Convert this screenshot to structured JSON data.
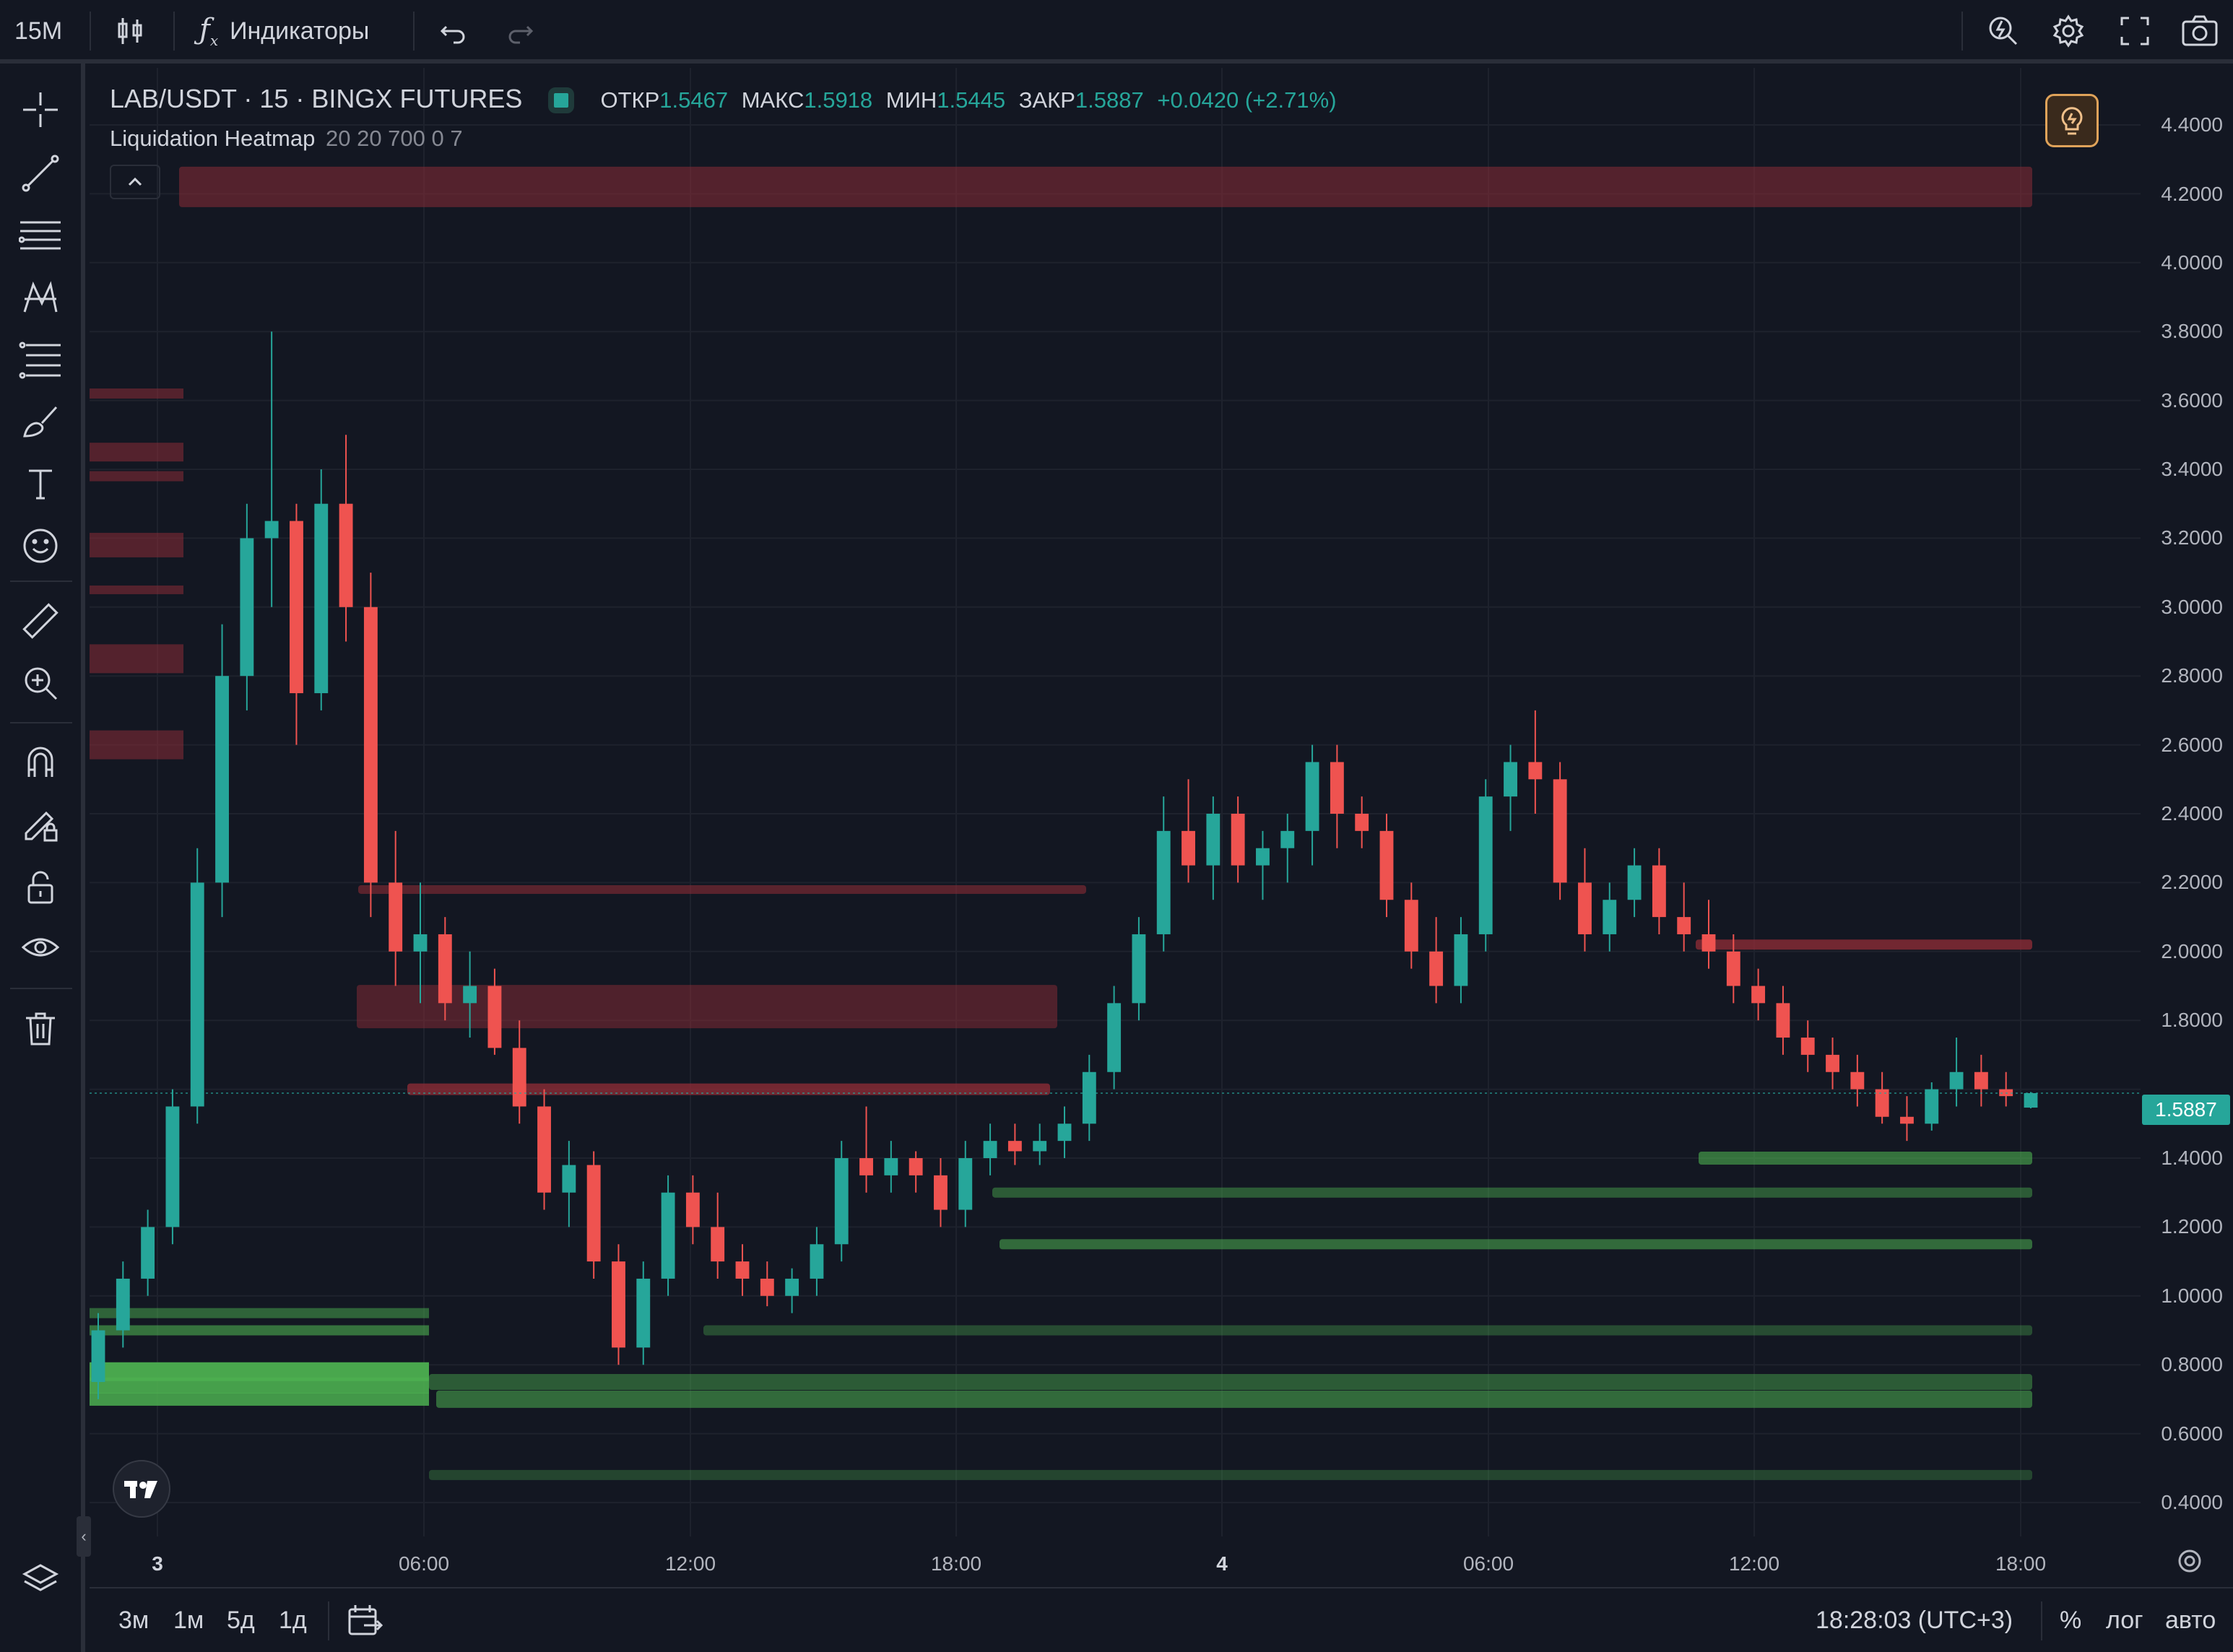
{
  "toolbar": {
    "interval": "15M",
    "indicators_label": "Индикаторы"
  },
  "legend": {
    "symbol": "LAB/USDT · 15 · BINGX FUTURES",
    "open_label": "ОТКР",
    "open": "1.5467",
    "high_label": "МАКС",
    "high": "1.5918",
    "low_label": "МИН",
    "low": "1.5445",
    "close_label": "ЗАКР",
    "close": "1.5887",
    "change": "+0.0420 (+2.71%)",
    "indicator_name": "Liquidation Heatmap",
    "indicator_params": "20 20 700 0 7"
  },
  "price_axis": {
    "labels": [
      "4.4000",
      "4.2000",
      "4.0000",
      "3.8000",
      "3.6000",
      "3.4000",
      "3.2000",
      "3.0000",
      "2.8000",
      "2.6000",
      "2.4000",
      "2.2000",
      "2.0000",
      "1.8000",
      "1.4000",
      "1.2000",
      "1.0000",
      "0.8000",
      "0.6000",
      "0.4000"
    ],
    "current_price": "1.5887"
  },
  "time_axis": {
    "labels": [
      "3",
      "06:00",
      "12:00",
      "18:00",
      "4",
      "06:00",
      "12:00",
      "18:00"
    ]
  },
  "bottom": {
    "ranges": [
      "3м",
      "1м",
      "5д",
      "1д"
    ],
    "clock": "18:28:03 (UTC+3)",
    "percent": "%",
    "log": "лог",
    "auto": "авто"
  },
  "colors": {
    "background": "#131722",
    "up": "#26a69a",
    "down": "#ef5350",
    "heat_green": "#4caf50",
    "heat_red": "#8b2c36"
  },
  "chart_data": {
    "type": "candlestick",
    "symbol": "LAB/USDT",
    "interval": "15",
    "ylim": [
      0.3,
      4.5
    ],
    "x": [
      "3",
      "06:00",
      "12:00",
      "18:00",
      "4",
      "06:00",
      "12:00",
      "18:00"
    ],
    "ohlc_sample": [
      [
        0.75,
        0.95,
        0.7,
        0.9
      ],
      [
        0.9,
        1.1,
        0.85,
        1.05
      ],
      [
        1.05,
        1.25,
        1.0,
        1.2
      ],
      [
        1.2,
        1.6,
        1.15,
        1.55
      ],
      [
        1.55,
        2.3,
        1.5,
        2.2
      ],
      [
        2.2,
        2.95,
        2.1,
        2.8
      ],
      [
        2.8,
        3.3,
        2.7,
        3.2
      ],
      [
        3.2,
        3.8,
        3.0,
        3.25
      ],
      [
        3.25,
        3.3,
        2.6,
        2.75
      ],
      [
        2.75,
        3.4,
        2.7,
        3.3
      ],
      [
        3.3,
        3.5,
        2.9,
        3.0
      ],
      [
        3.0,
        3.1,
        2.1,
        2.2
      ],
      [
        2.2,
        2.35,
        1.9,
        2.0
      ],
      [
        2.0,
        2.2,
        1.85,
        2.05
      ],
      [
        2.05,
        2.1,
        1.8,
        1.85
      ],
      [
        1.85,
        2.0,
        1.75,
        1.9
      ],
      [
        1.9,
        1.95,
        1.7,
        1.72
      ],
      [
        1.72,
        1.8,
        1.5,
        1.55
      ],
      [
        1.55,
        1.6,
        1.25,
        1.3
      ],
      [
        1.3,
        1.45,
        1.2,
        1.38
      ],
      [
        1.38,
        1.42,
        1.05,
        1.1
      ],
      [
        1.1,
        1.15,
        0.8,
        0.85
      ],
      [
        0.85,
        1.1,
        0.8,
        1.05
      ],
      [
        1.05,
        1.35,
        1.0,
        1.3
      ],
      [
        1.3,
        1.35,
        1.15,
        1.2
      ],
      [
        1.2,
        1.3,
        1.05,
        1.1
      ],
      [
        1.1,
        1.15,
        1.0,
        1.05
      ],
      [
        1.05,
        1.1,
        0.97,
        1.0
      ],
      [
        1.0,
        1.08,
        0.95,
        1.05
      ],
      [
        1.05,
        1.2,
        1.0,
        1.15
      ],
      [
        1.15,
        1.45,
        1.1,
        1.4
      ],
      [
        1.4,
        1.55,
        1.3,
        1.35
      ],
      [
        1.35,
        1.45,
        1.3,
        1.4
      ],
      [
        1.4,
        1.42,
        1.3,
        1.35
      ],
      [
        1.35,
        1.4,
        1.2,
        1.25
      ],
      [
        1.25,
        1.45,
        1.2,
        1.4
      ],
      [
        1.4,
        1.5,
        1.35,
        1.45
      ],
      [
        1.45,
        1.5,
        1.38,
        1.42
      ],
      [
        1.42,
        1.5,
        1.38,
        1.45
      ],
      [
        1.45,
        1.55,
        1.4,
        1.5
      ],
      [
        1.5,
        1.7,
        1.45,
        1.65
      ],
      [
        1.65,
        1.9,
        1.6,
        1.85
      ],
      [
        1.85,
        2.1,
        1.8,
        2.05
      ],
      [
        2.05,
        2.45,
        2.0,
        2.35
      ],
      [
        2.35,
        2.5,
        2.2,
        2.25
      ],
      [
        2.25,
        2.45,
        2.15,
        2.4
      ],
      [
        2.4,
        2.45,
        2.2,
        2.25
      ],
      [
        2.25,
        2.35,
        2.15,
        2.3
      ],
      [
        2.3,
        2.4,
        2.2,
        2.35
      ],
      [
        2.35,
        2.6,
        2.25,
        2.55
      ],
      [
        2.55,
        2.6,
        2.3,
        2.4
      ],
      [
        2.4,
        2.45,
        2.3,
        2.35
      ],
      [
        2.35,
        2.4,
        2.1,
        2.15
      ],
      [
        2.15,
        2.2,
        1.95,
        2.0
      ],
      [
        2.0,
        2.1,
        1.85,
        1.9
      ],
      [
        1.9,
        2.1,
        1.85,
        2.05
      ],
      [
        2.05,
        2.5,
        2.0,
        2.45
      ],
      [
        2.45,
        2.6,
        2.35,
        2.55
      ],
      [
        2.55,
        2.7,
        2.4,
        2.5
      ],
      [
        2.5,
        2.55,
        2.15,
        2.2
      ],
      [
        2.2,
        2.3,
        2.0,
        2.05
      ],
      [
        2.05,
        2.2,
        2.0,
        2.15
      ],
      [
        2.15,
        2.3,
        2.1,
        2.25
      ],
      [
        2.25,
        2.3,
        2.05,
        2.1
      ],
      [
        2.1,
        2.2,
        2.0,
        2.05
      ],
      [
        2.05,
        2.15,
        1.95,
        2.0
      ],
      [
        2.0,
        2.05,
        1.85,
        1.9
      ],
      [
        1.9,
        1.95,
        1.8,
        1.85
      ],
      [
        1.85,
        1.9,
        1.7,
        1.75
      ],
      [
        1.75,
        1.8,
        1.65,
        1.7
      ],
      [
        1.7,
        1.75,
        1.6,
        1.65
      ],
      [
        1.65,
        1.7,
        1.55,
        1.6
      ],
      [
        1.6,
        1.65,
        1.5,
        1.52
      ],
      [
        1.52,
        1.58,
        1.45,
        1.5
      ],
      [
        1.5,
        1.62,
        1.48,
        1.6
      ],
      [
        1.6,
        1.75,
        1.55,
        1.65
      ],
      [
        1.65,
        1.7,
        1.55,
        1.6
      ],
      [
        1.6,
        1.65,
        1.55,
        1.58
      ],
      [
        1.5467,
        1.5918,
        1.5445,
        1.5887
      ]
    ],
    "heatmap_bands_sample": [
      {
        "price": 4.22,
        "side": "short"
      },
      {
        "price": 2.18,
        "side": "short"
      },
      {
        "price": 1.84,
        "side": "short"
      },
      {
        "price": 1.6,
        "side": "short"
      },
      {
        "price": 2.02,
        "side": "short"
      },
      {
        "price": 1.4,
        "side": "long"
      },
      {
        "price": 1.3,
        "side": "long"
      },
      {
        "price": 1.15,
        "side": "long"
      },
      {
        "price": 0.9,
        "side": "long"
      },
      {
        "price": 0.75,
        "side": "long"
      },
      {
        "price": 0.7,
        "side": "long"
      },
      {
        "price": 0.48,
        "side": "long"
      }
    ]
  }
}
